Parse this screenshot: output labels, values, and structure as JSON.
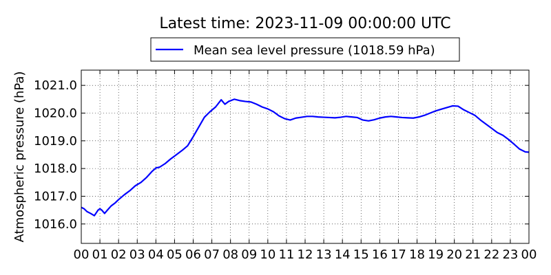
{
  "chart_data": {
    "type": "line",
    "title": "Latest time: 2023-11-09 00:00:00 UTC",
    "xlabel": "",
    "ylabel": "Atmospheric pressure (hPa)",
    "x_ticks": [
      "00",
      "01",
      "02",
      "03",
      "04",
      "05",
      "06",
      "07",
      "08",
      "09",
      "10",
      "11",
      "12",
      "13",
      "14",
      "15",
      "16",
      "17",
      "18",
      "19",
      "20",
      "21",
      "22",
      "23",
      "00"
    ],
    "y_ticks": [
      "1016.0",
      "1017.0",
      "1018.0",
      "1019.0",
      "1020.0",
      "1021.0"
    ],
    "xlim": [
      0,
      24
    ],
    "ylim": [
      1015.3,
      1021.55
    ],
    "grid": true,
    "legend_position": "top-center",
    "series": [
      {
        "name": "Mean sea level pressure (1018.59 hPa)",
        "color": "#0000ff",
        "x": [
          0,
          0.15,
          0.3,
          0.5,
          0.7,
          0.9,
          1.0,
          1.1,
          1.25,
          1.4,
          1.6,
          1.8,
          2.0,
          2.3,
          2.6,
          2.9,
          3.2,
          3.5,
          3.8,
          4.0,
          4.2,
          4.5,
          4.8,
          5.1,
          5.4,
          5.7,
          6.0,
          6.3,
          6.6,
          6.9,
          7.2,
          7.5,
          7.7,
          7.9,
          8.2,
          8.5,
          8.8,
          9.1,
          9.4,
          9.7,
          10.0,
          10.3,
          10.6,
          10.9,
          11.2,
          11.5,
          11.8,
          12.1,
          12.4,
          12.7,
          13.0,
          13.3,
          13.6,
          13.9,
          14.2,
          14.5,
          14.8,
          15.1,
          15.4,
          15.7,
          16.0,
          16.3,
          16.6,
          16.9,
          17.2,
          17.5,
          17.8,
          18.1,
          18.4,
          18.7,
          19.0,
          19.3,
          19.6,
          19.9,
          20.2,
          20.5,
          20.8,
          21.1,
          21.4,
          21.7,
          22.0,
          22.3,
          22.6,
          22.9,
          23.2,
          23.5,
          23.8,
          24.0
        ],
        "y": [
          1016.6,
          1016.55,
          1016.45,
          1016.38,
          1016.3,
          1016.5,
          1016.55,
          1016.5,
          1016.38,
          1016.5,
          1016.65,
          1016.75,
          1016.88,
          1017.05,
          1017.2,
          1017.38,
          1017.5,
          1017.68,
          1017.9,
          1018.02,
          1018.05,
          1018.18,
          1018.35,
          1018.5,
          1018.65,
          1018.82,
          1019.15,
          1019.5,
          1019.85,
          1020.05,
          1020.22,
          1020.48,
          1020.32,
          1020.42,
          1020.5,
          1020.45,
          1020.42,
          1020.4,
          1020.32,
          1020.22,
          1020.15,
          1020.05,
          1019.9,
          1019.8,
          1019.75,
          1019.82,
          1019.85,
          1019.88,
          1019.88,
          1019.86,
          1019.85,
          1019.84,
          1019.83,
          1019.85,
          1019.88,
          1019.86,
          1019.84,
          1019.75,
          1019.72,
          1019.76,
          1019.82,
          1019.86,
          1019.88,
          1019.86,
          1019.84,
          1019.83,
          1019.82,
          1019.86,
          1019.92,
          1020.0,
          1020.08,
          1020.14,
          1020.2,
          1020.26,
          1020.25,
          1020.12,
          1020.02,
          1019.92,
          1019.75,
          1019.6,
          1019.45,
          1019.3,
          1019.2,
          1019.05,
          1018.88,
          1018.7,
          1018.6,
          1018.59
        ]
      }
    ]
  }
}
